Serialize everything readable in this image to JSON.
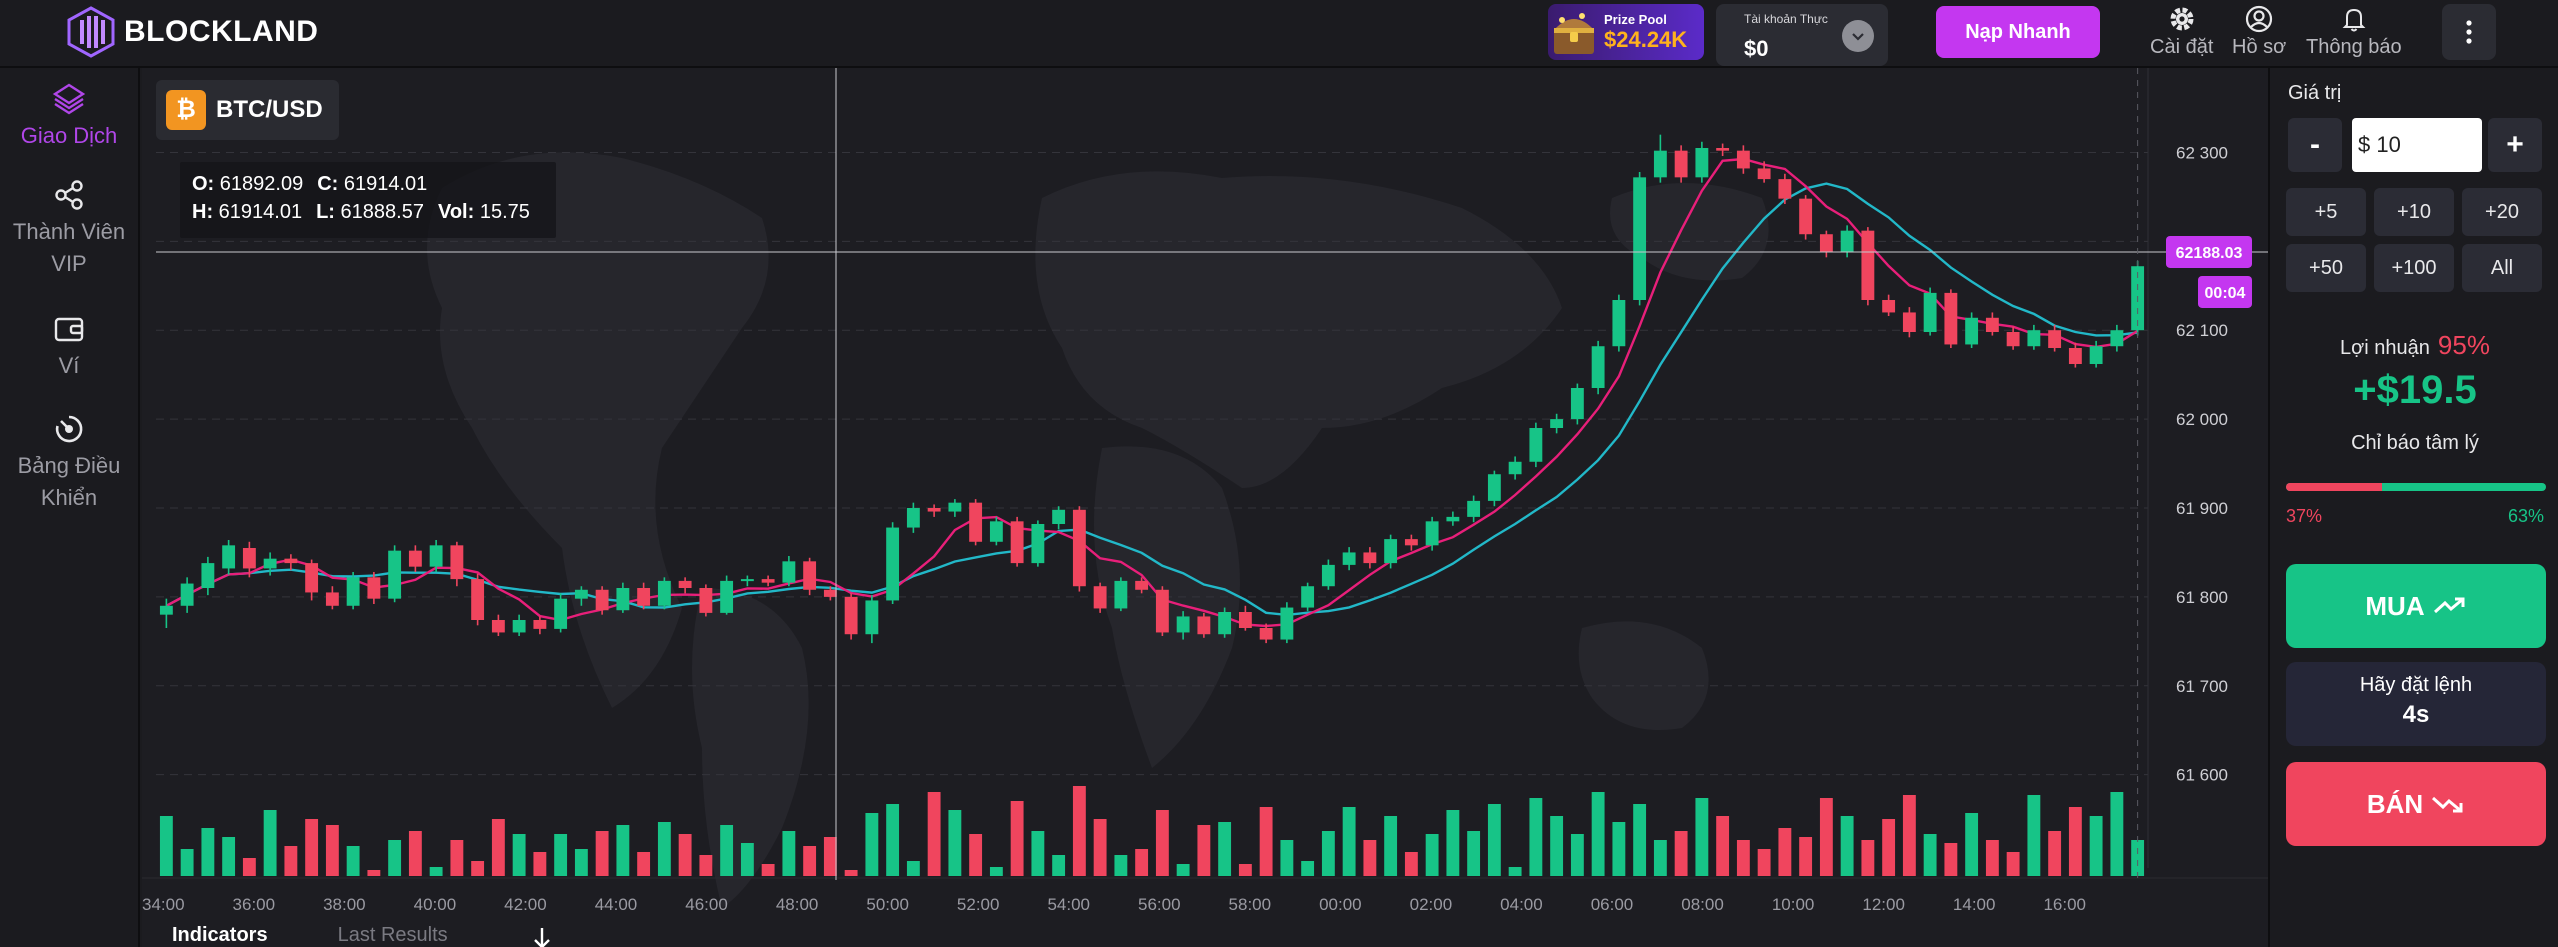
{
  "header": {
    "logo_text": "BLOCKLAND",
    "prize_pool": {
      "label": "Prize Pool",
      "value": "$24.24K"
    },
    "account": {
      "label": "Tài khoản Thực",
      "balance": "$0"
    },
    "deposit_label": "Nạp Nhanh",
    "nav": [
      {
        "label": "Cài đặt",
        "icon": "gear-icon"
      },
      {
        "label": "Hồ sơ",
        "icon": "user-icon"
      },
      {
        "label": "Thông báo",
        "icon": "bell-icon"
      }
    ],
    "more_icon": "more-vertical-icon"
  },
  "sidebar": {
    "items": [
      {
        "label": "Giao Dịch",
        "icon": "trade-icon",
        "active": true
      },
      {
        "label": "Thành Viên VIP",
        "icon": "share-icon"
      },
      {
        "label": "Ví",
        "icon": "wallet-icon"
      },
      {
        "label": "Bảng Điều Khiển",
        "icon": "dashboard-icon"
      }
    ]
  },
  "chart": {
    "symbol": "BTC/USD",
    "symbol_icon": "₿",
    "ohlc": {
      "o_label": "O:",
      "o": "61892.09",
      "c_label": "C:",
      "c": "61914.01",
      "h_label": "H:",
      "h": "61914.01",
      "l_label": "L:",
      "l": "61888.57",
      "vol_label": "Vol:",
      "vol": "15.75"
    },
    "current_price_label": "62188.03",
    "countdown": "00:04",
    "tabs": [
      "Indicators",
      "Last Results"
    ]
  },
  "chart_data": {
    "type": "candlestick",
    "price_axis_ticks": [
      62300,
      62200,
      62100,
      62000,
      61900,
      61800,
      61700,
      61600
    ],
    "price_axis_labels": [
      "62 300",
      "62 200",
      "62 100",
      "62 000",
      "61 900",
      "61 800",
      "61 700",
      "61 600"
    ],
    "time_axis_labels": [
      "34:00",
      "36:00",
      "38:00",
      "40:00",
      "42:00",
      "44:00",
      "46:00",
      "48:00",
      "50:00",
      "52:00",
      "54:00",
      "56:00",
      "58:00",
      "00:00",
      "02:00",
      "04:00",
      "06:00",
      "08:00",
      "10:00",
      "12:00",
      "14:00",
      "16:00"
    ],
    "ylim": [
      61540,
      62350
    ],
    "current_price": 62188.03,
    "crosshair_price": 62188.03,
    "grid": true,
    "colors": {
      "up": "#17c487",
      "down": "#f0455e",
      "ma_fast": "#e81f7a",
      "ma_slow": "#22b8c8"
    },
    "candles": [
      [
        61780,
        61790,
        61765,
        61798
      ],
      [
        61790,
        61815,
        61782,
        61822
      ],
      [
        61810,
        61838,
        61802,
        61845
      ],
      [
        61832,
        61858,
        61825,
        61864
      ],
      [
        61855,
        61832,
        61822,
        61862
      ],
      [
        61832,
        61843,
        61824,
        61850
      ],
      [
        61843,
        61838,
        61830,
        61848
      ],
      [
        61838,
        61805,
        61796,
        61842
      ],
      [
        61805,
        61790,
        61786,
        61812
      ],
      [
        61790,
        61822,
        61786,
        61828
      ],
      [
        61822,
        61798,
        61792,
        61828
      ],
      [
        61798,
        61852,
        61794,
        61858
      ],
      [
        61852,
        61834,
        61828,
        61858
      ],
      [
        61834,
        61858,
        61828,
        61864
      ],
      [
        61858,
        61820,
        61812,
        61862
      ],
      [
        61820,
        61774,
        61768,
        61826
      ],
      [
        61774,
        61760,
        61756,
        61780
      ],
      [
        61760,
        61774,
        61756,
        61780
      ],
      [
        61774,
        61764,
        61758,
        61778
      ],
      [
        61764,
        61798,
        61760,
        61804
      ],
      [
        61798,
        61808,
        61790,
        61812
      ],
      [
        61808,
        61785,
        61780,
        61812
      ],
      [
        61785,
        61810,
        61782,
        61816
      ],
      [
        61810,
        61790,
        61786,
        61816
      ],
      [
        61790,
        61818,
        61786,
        61822
      ],
      [
        61818,
        61810,
        61804,
        61822
      ],
      [
        61810,
        61782,
        61778,
        61814
      ],
      [
        61782,
        61818,
        61780,
        61824
      ],
      [
        61818,
        61820,
        61812,
        61824
      ],
      [
        61820,
        61816,
        61812,
        61824
      ],
      [
        61816,
        61840,
        61812,
        61846
      ],
      [
        61840,
        61808,
        61802,
        61844
      ],
      [
        61808,
        61800,
        61796,
        61812
      ],
      [
        61800,
        61758,
        61752,
        61804
      ],
      [
        61758,
        61796,
        61748,
        61802
      ],
      [
        61796,
        61878,
        61792,
        61884
      ],
      [
        61878,
        61900,
        61872,
        61906
      ],
      [
        61900,
        61896,
        61890,
        61904
      ],
      [
        61896,
        61906,
        61890,
        61910
      ],
      [
        61906,
        61862,
        61858,
        61910
      ],
      [
        61862,
        61885,
        61858,
        61890
      ],
      [
        61885,
        61838,
        61834,
        61890
      ],
      [
        61838,
        61882,
        61834,
        61886
      ],
      [
        61882,
        61898,
        61876,
        61902
      ],
      [
        61898,
        61812,
        61806,
        61902
      ],
      [
        61812,
        61787,
        61782,
        61816
      ],
      [
        61787,
        61818,
        61784,
        61822
      ],
      [
        61818,
        61808,
        61804,
        61822
      ],
      [
        61808,
        61760,
        61756,
        61812
      ],
      [
        61760,
        61778,
        61752,
        61784
      ],
      [
        61778,
        61758,
        61754,
        61782
      ],
      [
        61758,
        61783,
        61754,
        61788
      ],
      [
        61783,
        61765,
        61762,
        61790
      ],
      [
        61765,
        61752,
        61748,
        61770
      ],
      [
        61752,
        61788,
        61748,
        61794
      ],
      [
        61788,
        61812,
        61784,
        61816
      ],
      [
        61812,
        61836,
        61808,
        61842
      ],
      [
        61836,
        61850,
        61830,
        61856
      ],
      [
        61850,
        61838,
        61832,
        61856
      ],
      [
        61838,
        61865,
        61832,
        61870
      ],
      [
        61865,
        61858,
        61852,
        61870
      ],
      [
        61858,
        61885,
        61852,
        61890
      ],
      [
        61885,
        61890,
        61880,
        61896
      ],
      [
        61890,
        61908,
        61884,
        61914
      ],
      [
        61908,
        61938,
        61902,
        61942
      ],
      [
        61938,
        61952,
        61932,
        61958
      ],
      [
        61952,
        61990,
        61946,
        61996
      ],
      [
        61990,
        62000,
        61984,
        62006
      ],
      [
        62000,
        62035,
        61994,
        62040
      ],
      [
        62035,
        62082,
        62028,
        62088
      ],
      [
        62082,
        62134,
        62076,
        62140
      ],
      [
        62134,
        62272,
        62128,
        62278
      ],
      [
        62272,
        62302,
        62266,
        62320
      ],
      [
        62302,
        62272,
        62266,
        62308
      ],
      [
        62272,
        62305,
        62266,
        62312
      ],
      [
        62305,
        62302,
        62296,
        62310
      ],
      [
        62302,
        62282,
        62276,
        62308
      ],
      [
        62282,
        62270,
        62266,
        62290
      ],
      [
        62270,
        62248,
        62242,
        62276
      ],
      [
        62248,
        62208,
        62202,
        62252
      ],
      [
        62208,
        62188,
        62182,
        62212
      ],
      [
        62188,
        62212,
        62182,
        62218
      ],
      [
        62212,
        62134,
        62128,
        62216
      ],
      [
        62134,
        62120,
        62116,
        62140
      ],
      [
        62120,
        62098,
        62092,
        62126
      ],
      [
        62098,
        62142,
        62094,
        62148
      ],
      [
        62142,
        62084,
        62080,
        62146
      ],
      [
        62084,
        62114,
        62080,
        62120
      ],
      [
        62114,
        62098,
        62094,
        62120
      ],
      [
        62098,
        62082,
        62078,
        62104
      ],
      [
        62082,
        62100,
        62078,
        62106
      ],
      [
        62100,
        62080,
        62076,
        62106
      ],
      [
        62080,
        62062,
        62058,
        62086
      ],
      [
        62062,
        62082,
        62058,
        62088
      ],
      [
        62082,
        62100,
        62076,
        62106
      ],
      [
        62100,
        62172,
        62094,
        62178
      ]
    ],
    "volumes": [
      40,
      18,
      32,
      26,
      12,
      44,
      20,
      38,
      34,
      20,
      4,
      24,
      30,
      6,
      24,
      10,
      38,
      28,
      16,
      28,
      18,
      30,
      34,
      16,
      36,
      28,
      14,
      34,
      22,
      8,
      30,
      20,
      26,
      4,
      42,
      48,
      10,
      56,
      44,
      28,
      6,
      50,
      30,
      14,
      60,
      38,
      14,
      18,
      44,
      8,
      34,
      36,
      8,
      46,
      24,
      10,
      30,
      46,
      24,
      40,
      16,
      28,
      44,
      30,
      48,
      6,
      52,
      40,
      28,
      56,
      36,
      48,
      24,
      30,
      52,
      40,
      24,
      18,
      32,
      26,
      52,
      40,
      24,
      38,
      54,
      28,
      22,
      42,
      24,
      16,
      54,
      30,
      46,
      40,
      56,
      24
    ]
  },
  "right_panel": {
    "value_label": "Giá trị",
    "minus": "-",
    "plus": "+",
    "amount_value": "$ 10",
    "quick_amounts": [
      "+5",
      "+10",
      "+20",
      "+50",
      "+100",
      "All"
    ],
    "profit_label": "Lợi nhuận",
    "profit_pct": "95%",
    "payout": "+$19.5",
    "sentiment_label": "Chỉ báo tâm lý",
    "sentiment_down": "37%",
    "sentiment_up": "63%",
    "sentiment_down_fraction": 0.37,
    "buy_label": "MUA",
    "order_label": "Hãy đặt lệnh",
    "order_time": "4s",
    "sell_label": "BÁN"
  }
}
